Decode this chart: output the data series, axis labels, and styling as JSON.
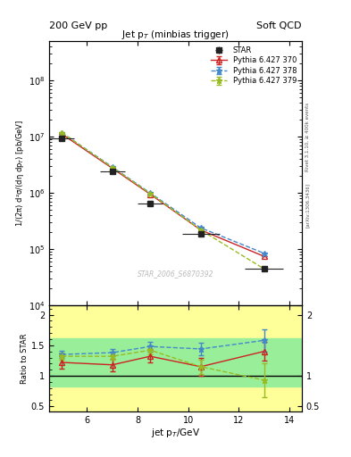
{
  "title_main": "Jet p$_T$ (minbias trigger)",
  "header_left": "200 GeV pp",
  "header_right": "Soft QCD",
  "right_label": "Rivet 3.1.10, ≥ 400k events",
  "arxiv_label": "[arXiv:1306.3436]",
  "watermark": "STAR_2006_S6870392",
  "ylabel_main": "1/(2π) d²σ/(dη dp$_T$) [pb/GeV]",
  "ylabel_ratio": "Ratio to STAR",
  "xlabel": "jet p$_T$/GeV",
  "star_x": [
    5.0,
    7.0,
    8.5,
    10.5,
    13.0
  ],
  "star_y": [
    9500000.0,
    2400000.0,
    650000.0,
    190000.0,
    45000.0
  ],
  "star_xerr": [
    0.5,
    0.5,
    0.5,
    0.75,
    0.75
  ],
  "star_yerr": [
    400000.0,
    120000.0,
    40000.0,
    12000.0,
    4000.0
  ],
  "p370_x": [
    5.0,
    7.0,
    8.5,
    10.5,
    13.0
  ],
  "p370_y": [
    11200000.0,
    2750000.0,
    950000.0,
    220000.0,
    75000.0
  ],
  "p370_yerr": [
    30000.0,
    30000.0,
    1500.0,
    800.0,
    300.0
  ],
  "p378_x": [
    5.0,
    7.0,
    8.5,
    10.5,
    13.0
  ],
  "p378_y": [
    11800000.0,
    2900000.0,
    1000000.0,
    240000.0,
    85000.0
  ],
  "p378_yerr": [
    30000.0,
    30000.0,
    2000.0,
    1000.0,
    400.0
  ],
  "p379_x": [
    5.0,
    7.0,
    8.5,
    10.5,
    13.0
  ],
  "p379_y": [
    11800000.0,
    2850000.0,
    980000.0,
    220000.0,
    45000.0
  ],
  "p379_yerr": [
    30000.0,
    30000.0,
    1800.0,
    1000.0,
    400.0
  ],
  "ratio_p370_x": [
    5.0,
    7.0,
    8.5,
    10.5,
    13.0
  ],
  "ratio_p370_y": [
    1.22,
    1.18,
    1.32,
    1.15,
    1.4
  ],
  "ratio_p370_yerr": [
    0.1,
    0.1,
    0.1,
    0.15,
    0.15
  ],
  "ratio_p378_x": [
    5.0,
    7.0,
    8.5,
    10.5,
    13.0
  ],
  "ratio_p378_y": [
    1.35,
    1.38,
    1.48,
    1.44,
    1.58
  ],
  "ratio_p378_yerr": [
    0.06,
    0.06,
    0.08,
    0.1,
    0.18
  ],
  "ratio_p379_x": [
    5.0,
    7.0,
    8.5,
    10.5,
    13.0
  ],
  "ratio_p379_y": [
    1.32,
    1.32,
    1.42,
    1.15,
    0.93
  ],
  "ratio_p379_yerr": [
    0.06,
    0.06,
    0.07,
    0.12,
    0.28
  ],
  "color_star": "#222222",
  "color_p370": "#cc2222",
  "color_p378": "#4488cc",
  "color_p379": "#99bb22",
  "band_green_lo": 0.82,
  "band_green_hi": 1.62,
  "band_yellow_lo": 0.42,
  "band_yellow_hi": 2.15,
  "ylim_main": [
    10000.0,
    500000000.0
  ],
  "ylim_ratio": [
    0.42,
    2.15
  ],
  "xlim": [
    4.5,
    14.5
  ]
}
